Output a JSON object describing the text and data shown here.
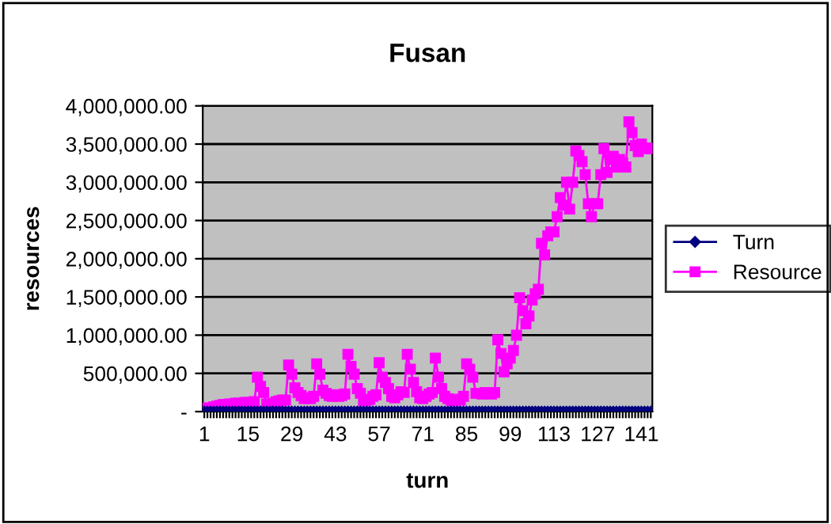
{
  "chart_data": {
    "type": "line",
    "title": "Fusan",
    "xlabel": "turn",
    "ylabel": "resources",
    "categories": [
      "1",
      null,
      null,
      null,
      null,
      null,
      null,
      null,
      null,
      null,
      null,
      null,
      null,
      null,
      "15",
      null,
      null,
      null,
      null,
      null,
      null,
      null,
      null,
      null,
      null,
      null,
      null,
      null,
      "29",
      null,
      null,
      null,
      null,
      null,
      null,
      null,
      null,
      null,
      null,
      null,
      null,
      null,
      "43",
      null,
      null,
      null,
      null,
      null,
      null,
      null,
      null,
      null,
      null,
      null,
      null,
      null,
      "57",
      null,
      null,
      null,
      null,
      null,
      null,
      null,
      null,
      null,
      null,
      null,
      null,
      null,
      "71",
      null,
      null,
      null,
      null,
      null,
      null,
      null,
      null,
      null,
      null,
      null,
      null,
      null,
      "85",
      null,
      null,
      null,
      null,
      null,
      null,
      null,
      null,
      null,
      null,
      null,
      null,
      null,
      "99",
      null,
      null,
      null,
      null,
      null,
      null,
      null,
      null,
      null,
      null,
      null,
      null,
      null,
      "113",
      null,
      null,
      null,
      null,
      null,
      null,
      null,
      null,
      null,
      null,
      null,
      null,
      null,
      "127",
      null,
      null,
      null,
      null,
      null,
      null,
      null,
      null,
      null,
      null,
      null,
      null,
      null,
      "141",
      null,
      null,
      null
    ],
    "series": [
      {
        "name": "Turn",
        "color": "#000080",
        "marker": "diamond",
        "values": [
          1,
          2,
          3,
          4,
          5,
          6,
          7,
          8,
          9,
          10,
          11,
          12,
          13,
          14,
          15,
          16,
          17,
          18,
          19,
          20,
          21,
          22,
          23,
          24,
          25,
          26,
          27,
          28,
          29,
          30,
          31,
          32,
          33,
          34,
          35,
          36,
          37,
          38,
          39,
          40,
          41,
          42,
          43,
          44,
          45,
          46,
          47,
          48,
          49,
          50,
          51,
          52,
          53,
          54,
          55,
          56,
          57,
          58,
          59,
          60,
          61,
          62,
          63,
          64,
          65,
          66,
          67,
          68,
          69,
          70,
          71,
          72,
          73,
          74,
          75,
          76,
          77,
          78,
          79,
          80,
          81,
          82,
          83,
          84,
          85,
          86,
          87,
          88,
          89,
          90,
          91,
          92,
          93,
          94,
          95,
          96,
          97,
          98,
          99,
          100,
          101,
          102,
          103,
          104,
          105,
          106,
          107,
          108,
          109,
          110,
          111,
          112,
          113,
          114,
          115,
          116,
          117,
          118,
          119,
          120,
          121,
          122,
          123,
          124,
          125,
          126,
          127,
          128,
          129,
          130,
          131,
          132,
          133,
          134,
          135,
          136,
          137,
          138,
          139,
          140,
          141,
          142,
          143,
          144
        ]
      },
      {
        "name": "Resource",
        "color": "#ff00ff",
        "marker": "square",
        "values": [
          50000,
          30000,
          40000,
          60000,
          70000,
          80000,
          90000,
          90000,
          100000,
          100000,
          110000,
          110000,
          60000,
          120000,
          120000,
          40000,
          130000,
          450000,
          330000,
          250000,
          100000,
          70000,
          110000,
          130000,
          140000,
          150000,
          150000,
          610000,
          490000,
          310000,
          250000,
          210000,
          170000,
          180000,
          170000,
          200000,
          625000,
          490000,
          280000,
          240000,
          210000,
          200000,
          220000,
          200000,
          210000,
          230000,
          750000,
          590000,
          490000,
          300000,
          240000,
          140000,
          150000,
          160000,
          200000,
          220000,
          640000,
          450000,
          380000,
          300000,
          200000,
          180000,
          220000,
          260000,
          250000,
          750000,
          555000,
          380000,
          260000,
          180000,
          170000,
          200000,
          230000,
          250000,
          700000,
          450000,
          300000,
          200000,
          170000,
          150000,
          140000,
          160000,
          150000,
          200000,
          625000,
          555000,
          450000,
          240000,
          240000,
          230000,
          250000,
          240000,
          230000,
          250000,
          940000,
          760000,
          520000,
          625000,
          700000,
          800000,
          1000000,
          1490000,
          1320000,
          1150000,
          1250000,
          1460000,
          1540000,
          1600000,
          2200000,
          2050000,
          2300000,
          2350000,
          2350000,
          2550000,
          2800000,
          2700000,
          3000000,
          2650000,
          3000000,
          3410000,
          3350000,
          3270000,
          3100000,
          2720000,
          2550000,
          2720000,
          2720000,
          3100000,
          3440000,
          3130000,
          3300000,
          3340000,
          3200000,
          3300000,
          3250000,
          3200000,
          3790000,
          3650000,
          3480000,
          3400000,
          3500000,
          3440000,
          3450000,
          3440000
        ]
      }
    ],
    "ylim": [
      0,
      4000000
    ],
    "yticks": [
      {
        "value": 0,
        "label": "-"
      },
      {
        "value": 500000,
        "label": "500,000.00"
      },
      {
        "value": 1000000,
        "label": "1,000,000.00"
      },
      {
        "value": 1500000,
        "label": "1,500,000.00"
      },
      {
        "value": 2000000,
        "label": "2,000,000.00"
      },
      {
        "value": 2500000,
        "label": "2,500,000.00"
      },
      {
        "value": 3000000,
        "label": "3,000,000.00"
      },
      {
        "value": 3500000,
        "label": "3,500,000.00"
      },
      {
        "value": 4000000,
        "label": "4,000,000.00"
      }
    ],
    "grid": "y",
    "legend": "right",
    "line_style": "solid"
  }
}
